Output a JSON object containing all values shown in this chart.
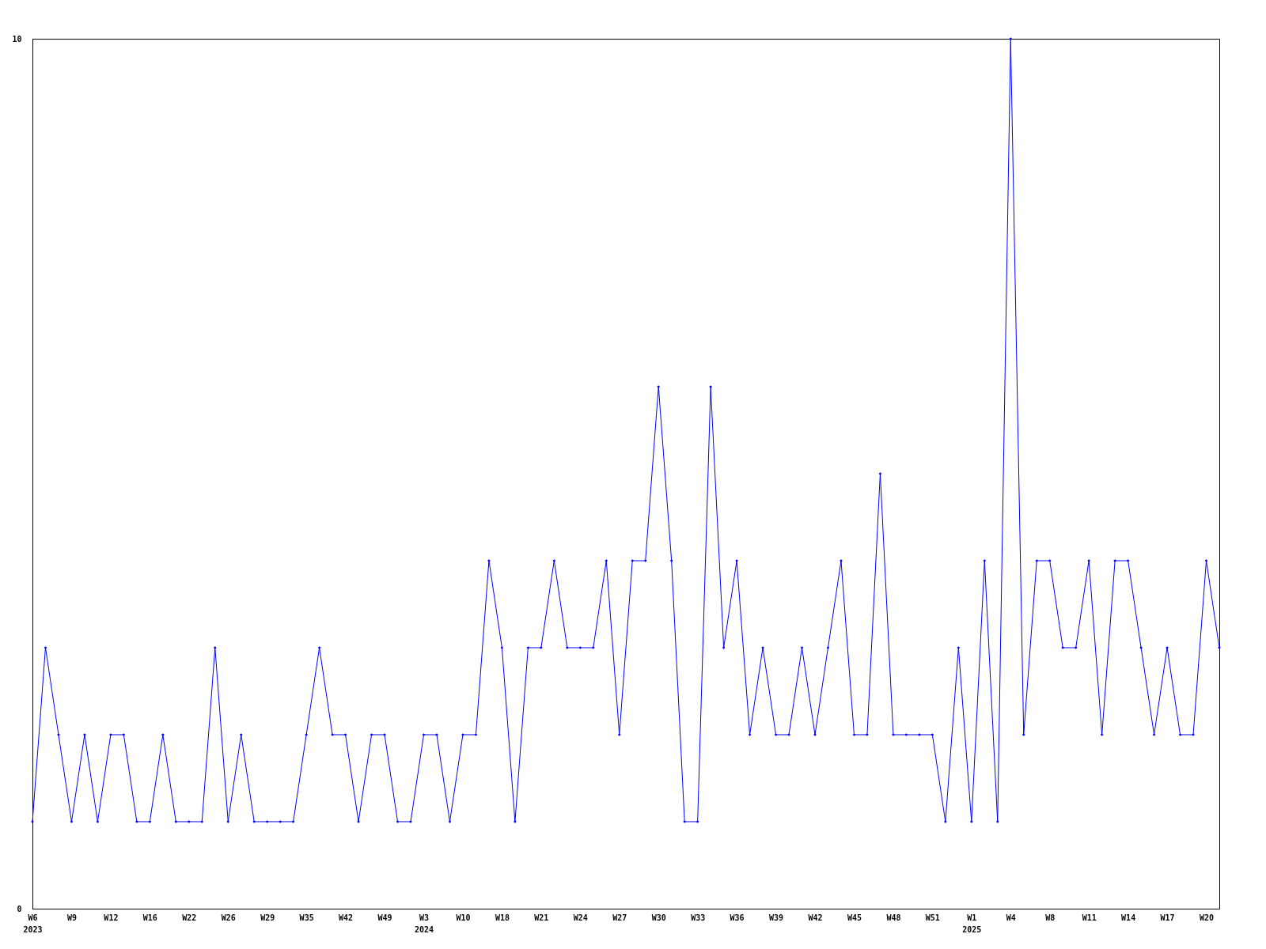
{
  "chart_data": {
    "type": "line",
    "categories": [
      "W6\n2023",
      null,
      null,
      "W9",
      null,
      null,
      "W12",
      null,
      null,
      "W16",
      null,
      null,
      "W22",
      null,
      null,
      "W26",
      null,
      null,
      "W29",
      null,
      null,
      "W35",
      null,
      null,
      "W42",
      null,
      null,
      "W49",
      null,
      null,
      "W3\n2024",
      null,
      null,
      "W10",
      null,
      null,
      "W18",
      null,
      null,
      "W21",
      null,
      null,
      "W24",
      null,
      null,
      "W27",
      null,
      null,
      "W30",
      null,
      null,
      "W33",
      null,
      null,
      "W36",
      null,
      null,
      "W39",
      null,
      null,
      "W42",
      null,
      null,
      "W45",
      null,
      null,
      "W48",
      null,
      null,
      "W51",
      null,
      null,
      "W1\n2025",
      null,
      null,
      "W4",
      null,
      null,
      "W8",
      null,
      null,
      "W11",
      null,
      null,
      "W14",
      null,
      null,
      "W17",
      null,
      null,
      "W20",
      null
    ],
    "series": [
      {
        "color": "#0000ff",
        "values": [
          1,
          3,
          2,
          1,
          2,
          1,
          2,
          2,
          1,
          1,
          2,
          1,
          1,
          1,
          3,
          1,
          2,
          1,
          1,
          1,
          1,
          2,
          3,
          2,
          2,
          1,
          2,
          2,
          1,
          1,
          2,
          2,
          1,
          2,
          2,
          4,
          3,
          1,
          3,
          3,
          4,
          3,
          3,
          3,
          4,
          2,
          4,
          4,
          6,
          4,
          1,
          1,
          6,
          3,
          4,
          2,
          3,
          2,
          2,
          3,
          2,
          3,
          4,
          2,
          2,
          5,
          2,
          2,
          2,
          2,
          1,
          3,
          1,
          4,
          1,
          10,
          2,
          4,
          4,
          3,
          3,
          4,
          2,
          4,
          4,
          3,
          2,
          3,
          2,
          2,
          4,
          3
        ]
      }
    ],
    "ylim": [
      0,
      10
    ],
    "yticks": [
      0,
      10
    ],
    "grid": false,
    "marker": "diamond",
    "line_style": "solid"
  }
}
